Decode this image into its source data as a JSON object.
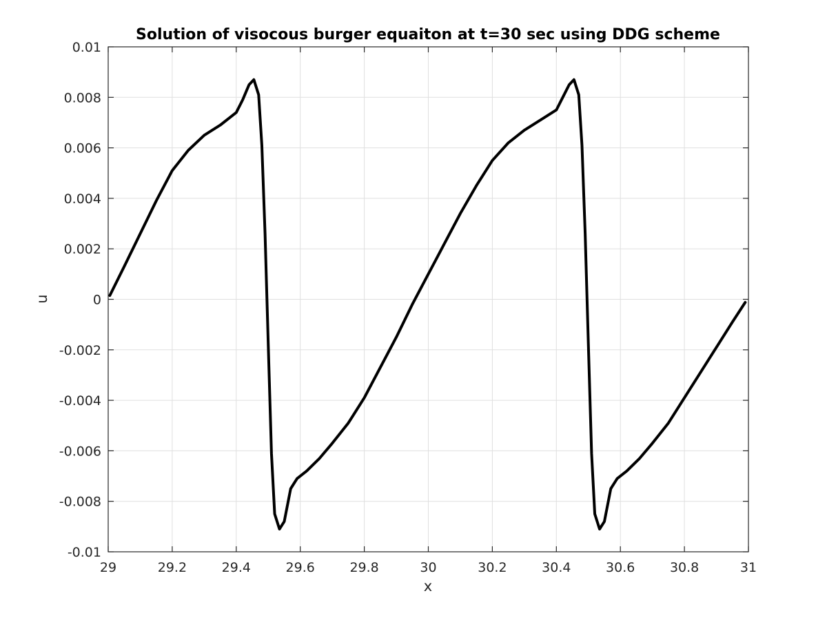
{
  "chart_data": {
    "type": "line",
    "title": "Solution of visocous burger equaiton at t=30 sec using DDG scheme",
    "xlabel": "x",
    "ylabel": "u",
    "xlim": [
      29,
      31
    ],
    "ylim": [
      -0.01,
      0.01
    ],
    "grid": true,
    "xticks": [
      29,
      29.2,
      29.4,
      29.6,
      29.8,
      30,
      30.2,
      30.4,
      30.6,
      30.8,
      31
    ],
    "xtick_labels": [
      "29",
      "29.2",
      "29.4",
      "29.6",
      "29.8",
      "30",
      "30.2",
      "30.4",
      "30.6",
      "30.8",
      "31"
    ],
    "yticks": [
      0.01,
      0.008,
      0.006,
      0.004,
      0.002,
      0,
      -0.002,
      -0.004,
      -0.006,
      -0.008,
      -0.01
    ],
    "ytick_labels": [
      "0.01",
      "0.008",
      "0.006",
      "0.004",
      "0.002",
      "0",
      "-0.002",
      "-0.004",
      "-0.006",
      "-0.008",
      "-0.01"
    ],
    "series": [
      {
        "color": "#000000",
        "points": [
          [
            29.005,
            0.00015
          ],
          [
            29.05,
            0.0013
          ],
          [
            29.1,
            0.0026
          ],
          [
            29.15,
            0.0039
          ],
          [
            29.2,
            0.0051
          ],
          [
            29.25,
            0.0059
          ],
          [
            29.3,
            0.0065
          ],
          [
            29.35,
            0.0069
          ],
          [
            29.4,
            0.0074
          ],
          [
            29.42,
            0.0079
          ],
          [
            29.44,
            0.0085
          ],
          [
            29.455,
            0.0087
          ],
          [
            29.47,
            0.0081
          ],
          [
            29.48,
            0.0061
          ],
          [
            29.49,
            0.0026
          ],
          [
            29.5,
            -0.0018
          ],
          [
            29.51,
            -0.0061
          ],
          [
            29.52,
            -0.0085
          ],
          [
            29.535,
            -0.0091
          ],
          [
            29.55,
            -0.0088
          ],
          [
            29.57,
            -0.0075
          ],
          [
            29.59,
            -0.0071
          ],
          [
            29.62,
            -0.0068
          ],
          [
            29.66,
            -0.0063
          ],
          [
            29.7,
            -0.0057
          ],
          [
            29.75,
            -0.0049
          ],
          [
            29.8,
            -0.0039
          ],
          [
            29.85,
            -0.0027
          ],
          [
            29.9,
            -0.0015
          ],
          [
            29.95,
            -0.0002
          ],
          [
            30.0,
            0.001
          ],
          [
            30.05,
            0.0022
          ],
          [
            30.1,
            0.0034
          ],
          [
            30.15,
            0.0045
          ],
          [
            30.2,
            0.0055
          ],
          [
            30.25,
            0.0062
          ],
          [
            30.3,
            0.0067
          ],
          [
            30.35,
            0.0071
          ],
          [
            30.4,
            0.0075
          ],
          [
            30.42,
            0.008
          ],
          [
            30.44,
            0.0085
          ],
          [
            30.455,
            0.0087
          ],
          [
            30.47,
            0.0081
          ],
          [
            30.48,
            0.0061
          ],
          [
            30.49,
            0.0026
          ],
          [
            30.5,
            -0.0018
          ],
          [
            30.51,
            -0.0061
          ],
          [
            30.52,
            -0.0085
          ],
          [
            30.535,
            -0.0091
          ],
          [
            30.55,
            -0.0088
          ],
          [
            30.57,
            -0.0075
          ],
          [
            30.59,
            -0.0071
          ],
          [
            30.62,
            -0.0068
          ],
          [
            30.66,
            -0.0063
          ],
          [
            30.7,
            -0.0057
          ],
          [
            30.75,
            -0.0049
          ],
          [
            30.8,
            -0.0039
          ],
          [
            30.85,
            -0.0029
          ],
          [
            30.9,
            -0.0019
          ],
          [
            30.95,
            -0.0009
          ],
          [
            30.99,
            -0.00012
          ]
        ]
      }
    ]
  }
}
